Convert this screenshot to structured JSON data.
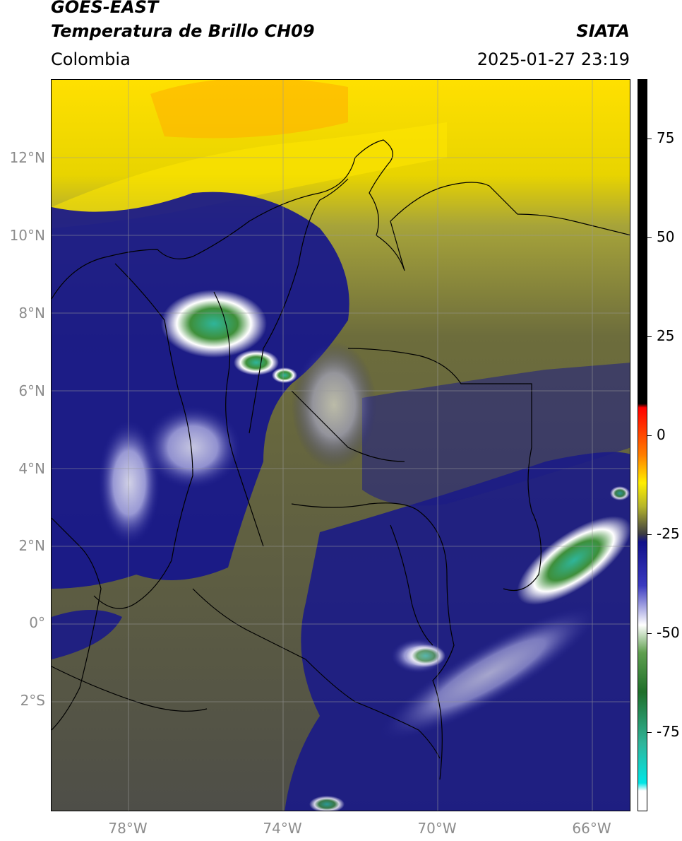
{
  "header": {
    "satellite": "GOES-EAST",
    "product": "Temperatura de Brillo CH09",
    "org": "SIATA",
    "region": "Colombia",
    "datetime": "2025-01-27 23:19"
  },
  "map": {
    "lon_range": [
      -80,
      -65
    ],
    "lat_range": [
      -4.8,
      14.0
    ],
    "lat_ticks": [
      {
        "value": 12,
        "label": "12°N"
      },
      {
        "value": 10,
        "label": "10°N"
      },
      {
        "value": 8,
        "label": "8°N"
      },
      {
        "value": 6,
        "label": "6°N"
      },
      {
        "value": 4,
        "label": "4°N"
      },
      {
        "value": 2,
        "label": "2°N"
      },
      {
        "value": 0,
        "label": "0°"
      },
      {
        "value": -2,
        "label": "2°S"
      }
    ],
    "lon_ticks": [
      {
        "value": -78,
        "label": "78°W"
      },
      {
        "value": -74,
        "label": "74°W"
      },
      {
        "value": -70,
        "label": "70°W"
      },
      {
        "value": -66,
        "label": "66°W"
      }
    ],
    "gridlines": true,
    "colors": {
      "yellow": "#ffe800",
      "olive": "#8a8a2e",
      "dark_olive": "#5a5a45",
      "navy": "#16168c",
      "white_cloud": "#e8e8f5",
      "green": "#2e8b3e",
      "teal": "#2fb59a",
      "border": "#000000",
      "grid": "#9a9a9a"
    }
  },
  "colorbar": {
    "ticks": [
      {
        "value": 75,
        "label": "75"
      },
      {
        "value": 50,
        "label": "50"
      },
      {
        "value": 25,
        "label": "25"
      },
      {
        "value": 0,
        "label": "0"
      },
      {
        "value": -25,
        "label": "-25"
      },
      {
        "value": -50,
        "label": "-50"
      },
      {
        "value": -75,
        "label": "-75"
      }
    ],
    "range": [
      -95,
      90
    ],
    "stops": [
      {
        "value": 90,
        "color": "#000000"
      },
      {
        "value": 8,
        "color": "#000000"
      },
      {
        "value": 7,
        "color": "#ff0000"
      },
      {
        "value": -5,
        "color": "#ff7f00"
      },
      {
        "value": -12,
        "color": "#ffee00"
      },
      {
        "value": -18,
        "color": "#b5b52a"
      },
      {
        "value": -25,
        "color": "#3c3c42"
      },
      {
        "value": -27,
        "color": "#10108a"
      },
      {
        "value": -38,
        "color": "#3a3ac0"
      },
      {
        "value": -48,
        "color": "#ffffff"
      },
      {
        "value": -55,
        "color": "#5f9f4f"
      },
      {
        "value": -65,
        "color": "#1f6f2a"
      },
      {
        "value": -78,
        "color": "#2fb59a"
      },
      {
        "value": -88,
        "color": "#00e6e6"
      },
      {
        "value": -90,
        "color": "#ffffff"
      },
      {
        "value": -95,
        "color": "#ffffff"
      }
    ]
  }
}
